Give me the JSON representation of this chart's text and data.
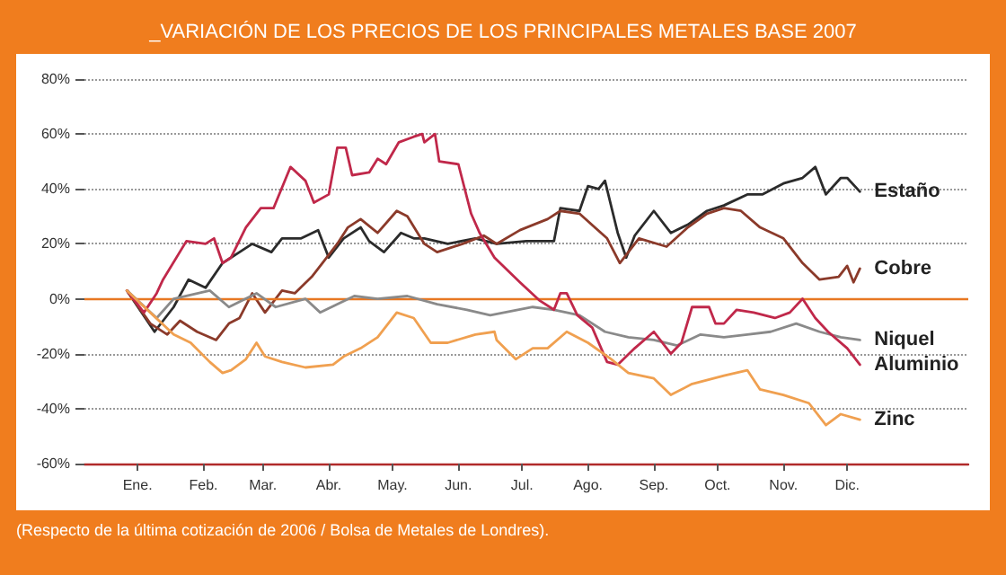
{
  "chart_data": {
    "type": "line",
    "title": "_VARIACIÓN DE LOS PRECIOS DE LOS PRINCIPALES METALES BASE 2007",
    "annotations": [
      "(Respecto de la última cotización de 2006 / Bolsa de Metales de Londres)."
    ],
    "xlim": [
      "2006-12-07",
      "2008-01-27"
    ],
    "xticks": [
      {
        "value": "2007-01-01",
        "label": "Ene."
      },
      {
        "value": "2007-02-01",
        "label": "Feb."
      },
      {
        "value": "2007-03-01",
        "label": "Mar."
      },
      {
        "value": "2007-04-01",
        "label": "Abr."
      },
      {
        "value": "2007-05-01",
        "label": "May."
      },
      {
        "value": "2007-06-01",
        "label": "Jun."
      },
      {
        "value": "2007-07-01",
        "label": "Jul."
      },
      {
        "value": "2007-08-01",
        "label": "Ago."
      },
      {
        "value": "2007-09-01",
        "label": "Sep."
      },
      {
        "value": "2007-10-01",
        "label": "Oct."
      },
      {
        "value": "2007-11-01",
        "label": "Nov."
      },
      {
        "value": "2007-12-01",
        "label": "Dic."
      }
    ],
    "ylim": [
      -60,
      80
    ],
    "yticks": [
      {
        "value": -60,
        "label": "-60%"
      },
      {
        "value": -40,
        "label": "-40%"
      },
      {
        "value": -20,
        "label": "-20%"
      },
      {
        "value": 0,
        "label": "0%"
      },
      {
        "value": 20,
        "label": "20%"
      },
      {
        "value": 40,
        "label": "40%"
      },
      {
        "value": 60,
        "label": "60%"
      },
      {
        "value": 80,
        "label": "80%"
      }
    ],
    "grid": "y",
    "legend": false,
    "marker": "none",
    "line_style": "solid",
    "ref_lines": [
      {
        "axis": "y",
        "value": 0,
        "label": null,
        "color": "#e87722"
      }
    ],
    "series": [
      {
        "name": "Estaño",
        "color": "#2b2b2b",
        "x": [
          "2006-12-27",
          "2007-01-09",
          "2007-01-18",
          "2007-01-25",
          "2007-02-02",
          "2007-02-10",
          "2007-02-18",
          "2007-02-24",
          "2007-03-05",
          "2007-03-10",
          "2007-03-19",
          "2007-03-27",
          "2007-04-01",
          "2007-04-08",
          "2007-04-16",
          "2007-04-20",
          "2007-04-27",
          "2007-05-05",
          "2007-05-11",
          "2007-05-16",
          "2007-05-27",
          "2007-06-09",
          "2007-06-19",
          "2007-07-03",
          "2007-07-16",
          "2007-07-19",
          "2007-07-28",
          "2007-08-01",
          "2007-08-06",
          "2007-08-09",
          "2007-08-15",
          "2007-08-19",
          "2007-08-23",
          "2007-09-01",
          "2007-09-09",
          "2007-09-17",
          "2007-09-26",
          "2007-10-04",
          "2007-10-15",
          "2007-10-22",
          "2007-11-01",
          "2007-11-10",
          "2007-11-16",
          "2007-11-21",
          "2007-11-28",
          "2007-12-01",
          "2007-12-07"
        ],
        "values": [
          3,
          -12,
          -3,
          7,
          4,
          13,
          17,
          20,
          17,
          22,
          22,
          25,
          15,
          22,
          26,
          21,
          17,
          24,
          22,
          22,
          20,
          22,
          20,
          21,
          21,
          33,
          32,
          41,
          40,
          43,
          24,
          15,
          23,
          32,
          24,
          27,
          32,
          34,
          38,
          38,
          42,
          44,
          48,
          38,
          44,
          44,
          39
        ]
      },
      {
        "name": "Cobre",
        "color": "#8b3a2a",
        "x": [
          "2006-12-27",
          "2007-01-07",
          "2007-01-15",
          "2007-01-21",
          "2007-01-29",
          "2007-02-07",
          "2007-02-13",
          "2007-02-18",
          "2007-02-24",
          "2007-03-02",
          "2007-03-10",
          "2007-03-16",
          "2007-03-24",
          "2007-03-29",
          "2007-04-05",
          "2007-04-10",
          "2007-04-16",
          "2007-04-24",
          "2007-05-03",
          "2007-05-08",
          "2007-05-16",
          "2007-05-22",
          "2007-06-03",
          "2007-06-13",
          "2007-06-19",
          "2007-06-30",
          "2007-07-13",
          "2007-07-19",
          "2007-07-28",
          "2007-08-10",
          "2007-08-16",
          "2007-08-25",
          "2007-09-07",
          "2007-09-17",
          "2007-09-26",
          "2007-10-04",
          "2007-10-12",
          "2007-10-21",
          "2007-11-01",
          "2007-11-10",
          "2007-11-18",
          "2007-11-27",
          "2007-12-01",
          "2007-12-04",
          "2007-12-07"
        ],
        "values": [
          3,
          -9,
          -13,
          -8,
          -12,
          -15,
          -9,
          -7,
          2,
          -5,
          3,
          2,
          8,
          13,
          20,
          26,
          29,
          24,
          32,
          30,
          20,
          17,
          20,
          23,
          20,
          25,
          29,
          32,
          31,
          22,
          13,
          22,
          19,
          26,
          31,
          33,
          32,
          26,
          22,
          13,
          7,
          8,
          12,
          6,
          11
        ]
      },
      {
        "name": "Niquel",
        "color": "#8a8a8a",
        "x": [
          "2006-12-27",
          "2007-01-10",
          "2007-01-18",
          "2007-02-04",
          "2007-02-13",
          "2007-02-26",
          "2007-03-07",
          "2007-03-21",
          "2007-03-28",
          "2007-04-13",
          "2007-04-24",
          "2007-05-08",
          "2007-05-22",
          "2007-06-05",
          "2007-06-16",
          "2007-07-06",
          "2007-07-16",
          "2007-07-28",
          "2007-08-09",
          "2007-08-20",
          "2007-09-01",
          "2007-09-12",
          "2007-09-23",
          "2007-10-04",
          "2007-10-15",
          "2007-10-26",
          "2007-11-07",
          "2007-11-18",
          "2007-11-28",
          "2007-12-07"
        ],
        "values": [
          3,
          -7,
          0,
          3,
          -3,
          2,
          -3,
          0,
          -5,
          1,
          0,
          1,
          -2,
          -4,
          -6,
          -3,
          -4,
          -6,
          -12,
          -14,
          -15,
          -17,
          -13,
          -14,
          -13,
          -12,
          -9,
          -12,
          -14,
          -15
        ]
      },
      {
        "name": "Aluminio",
        "color": "#c0284a",
        "x": [
          "2006-12-27",
          "2007-01-04",
          "2007-01-10",
          "2007-01-13",
          "2007-01-24",
          "2007-02-02",
          "2007-02-06",
          "2007-02-10",
          "2007-02-14",
          "2007-02-21",
          "2007-02-28",
          "2007-03-06",
          "2007-03-14",
          "2007-03-21",
          "2007-03-25",
          "2007-04-01",
          "2007-04-05",
          "2007-04-09",
          "2007-04-12",
          "2007-04-20",
          "2007-04-24",
          "2007-04-28",
          "2007-05-04",
          "2007-05-11",
          "2007-05-15",
          "2007-05-16",
          "2007-05-21",
          "2007-05-23",
          "2007-06-01",
          "2007-06-07",
          "2007-06-11",
          "2007-06-18",
          "2007-06-30",
          "2007-07-09",
          "2007-07-16",
          "2007-07-19",
          "2007-07-22",
          "2007-07-27",
          "2007-08-03",
          "2007-08-10",
          "2007-08-15",
          "2007-08-23",
          "2007-09-01",
          "2007-09-09",
          "2007-09-14",
          "2007-09-19",
          "2007-09-27",
          "2007-09-30",
          "2007-10-04",
          "2007-10-10",
          "2007-10-18",
          "2007-10-28",
          "2007-11-04",
          "2007-11-10",
          "2007-11-16",
          "2007-11-22",
          "2007-12-01",
          "2007-12-07"
        ],
        "values": [
          3,
          -5,
          2,
          7,
          21,
          20,
          22,
          13,
          15,
          26,
          33,
          33,
          48,
          43,
          35,
          38,
          55,
          55,
          45,
          46,
          51,
          49,
          57,
          59,
          60,
          57,
          60,
          50,
          49,
          31,
          24,
          15,
          6,
          -0.5,
          -4,
          2,
          2,
          -6,
          -10.5,
          -23,
          -24,
          -18,
          -12,
          -20,
          -16,
          -3,
          -3,
          -9,
          -9,
          -4,
          -5,
          -7,
          -5,
          0,
          -7,
          -12,
          -18,
          -24
        ]
      },
      {
        "name": "Zinc",
        "color": "#f0a050",
        "x": [
          "2006-12-27",
          "2007-01-07",
          "2007-01-18",
          "2007-01-26",
          "2007-02-04",
          "2007-02-10",
          "2007-02-14",
          "2007-02-21",
          "2007-02-26",
          "2007-03-02",
          "2007-03-10",
          "2007-03-21",
          "2007-04-03",
          "2007-04-08",
          "2007-04-16",
          "2007-04-24",
          "2007-05-03",
          "2007-05-11",
          "2007-05-19",
          "2007-05-27",
          "2007-06-09",
          "2007-06-18",
          "2007-06-19",
          "2007-06-28",
          "2007-07-06",
          "2007-07-13",
          "2007-07-22",
          "2007-08-01",
          "2007-08-12",
          "2007-08-20",
          "2007-09-01",
          "2007-09-09",
          "2007-09-19",
          "2007-10-04",
          "2007-10-15",
          "2007-10-21",
          "2007-11-01",
          "2007-11-13",
          "2007-11-21",
          "2007-11-28",
          "2007-12-07"
        ],
        "values": [
          3,
          -5,
          -13,
          -16,
          -23,
          -27,
          -26,
          -22,
          -16,
          -21,
          -23,
          -25,
          -24,
          -21,
          -18,
          -14,
          -5,
          -7,
          -16,
          -16,
          -13,
          -12,
          -15,
          -22,
          -18,
          -18,
          -12,
          -16,
          -22,
          -27,
          -29,
          -35,
          -31,
          -28,
          -26,
          -33,
          -35,
          -38,
          -46,
          -42,
          -44
        ]
      }
    ]
  }
}
